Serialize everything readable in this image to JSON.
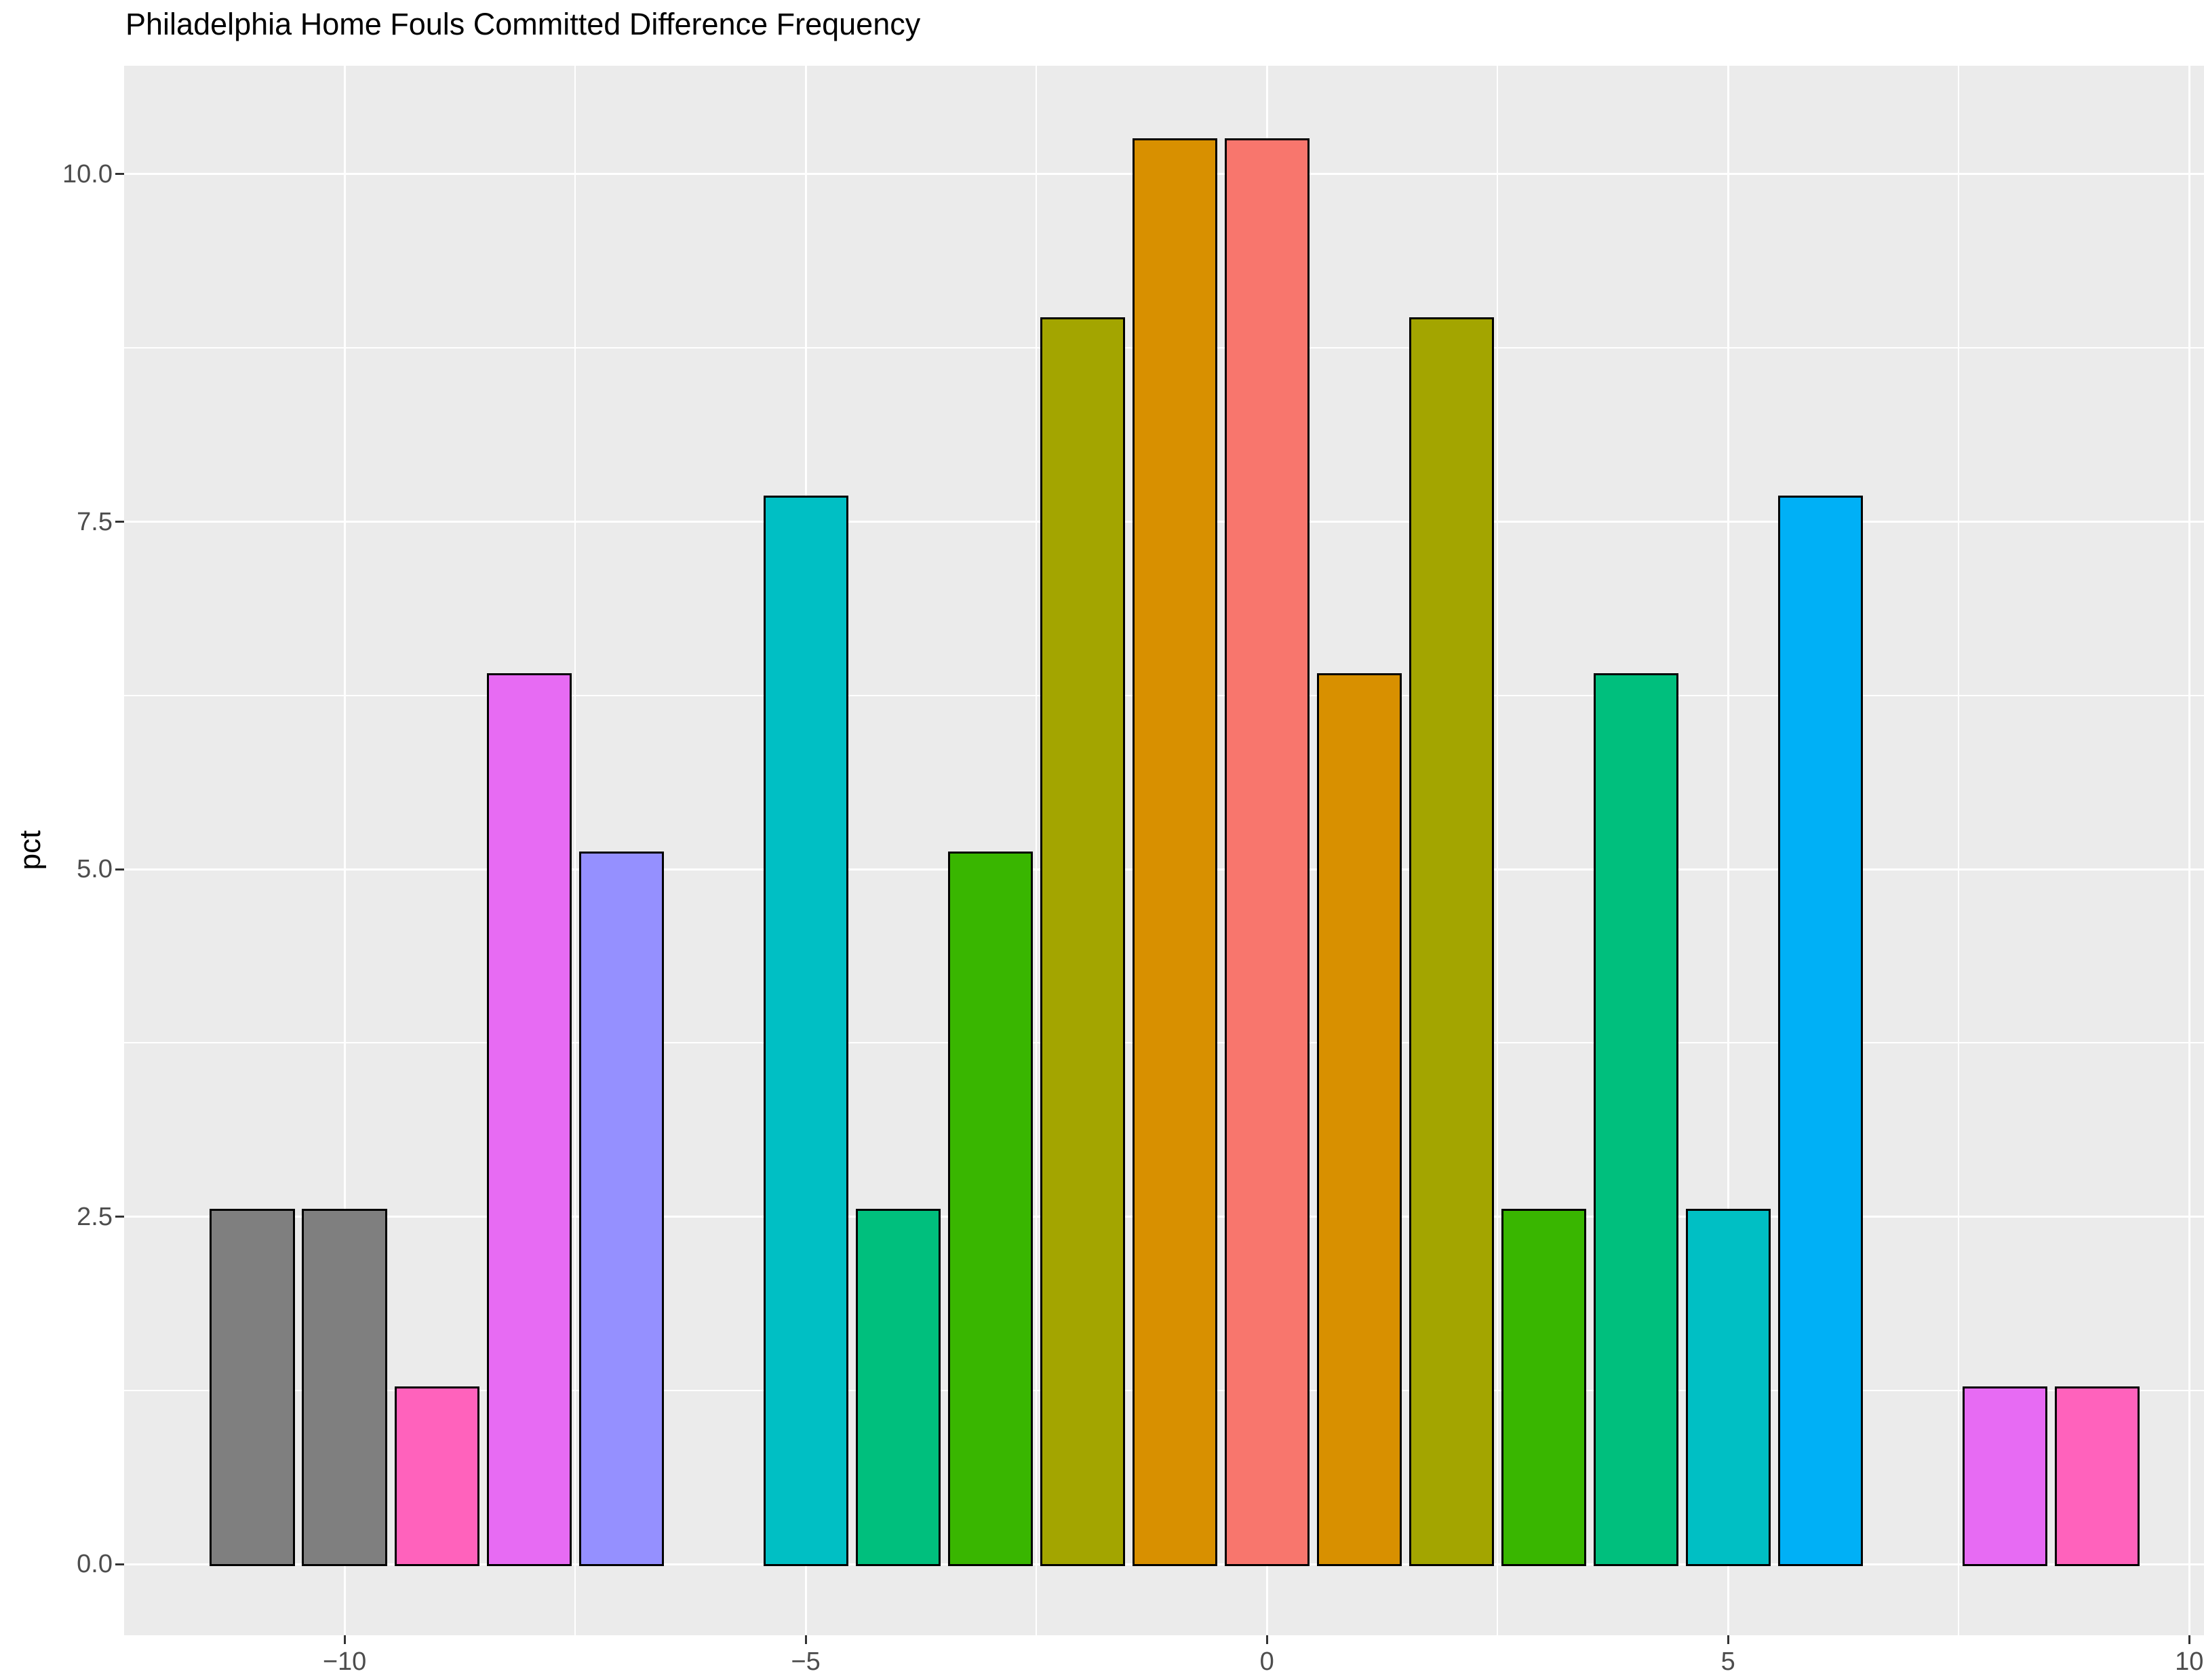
{
  "figure": {
    "title": "Philadelphia Home Fouls Committed Difference Frequency",
    "y_axis_title": "pct"
  },
  "chart_data": {
    "type": "bar",
    "title": "Philadelphia Home Fouls Committed Difference Frequency",
    "xlabel": "",
    "ylabel": "pct",
    "legend_position": "none",
    "grid": "major-and-minor-white-on-grey-panel",
    "x": [
      -11,
      -10,
      -9,
      -8,
      -7,
      -5,
      -4,
      -3,
      -2,
      -1,
      0,
      1,
      2,
      3,
      4,
      5,
      6,
      8,
      9
    ],
    "values": [
      2.56,
      2.56,
      1.28,
      6.41,
      5.13,
      7.69,
      2.56,
      5.13,
      8.97,
      10.26,
      10.26,
      6.41,
      8.97,
      2.56,
      6.41,
      2.56,
      7.69,
      1.28,
      1.28
    ],
    "bar_fills": [
      "#7F7F7F",
      "#7F7F7F",
      "#FF62BC",
      "#E76BF3",
      "#9590FF",
      "#00BFC4",
      "#00BF7D",
      "#39B600",
      "#A3A500",
      "#D89000",
      "#F8766D",
      "#D89000",
      "#A3A500",
      "#39B600",
      "#00BF7D",
      "#00BFC4",
      "#00B0F6",
      "#E76BF3",
      "#FF62BC"
    ],
    "bar_width": 0.92,
    "bar_stroke": "#000000",
    "xlim": [
      -12.39,
      10.16
    ],
    "ylim": [
      -0.51,
      10.78
    ],
    "x_major_ticks": [
      {
        "value": -10,
        "label": "−10"
      },
      {
        "value": -5,
        "label": "−5"
      },
      {
        "value": 0,
        "label": "0"
      },
      {
        "value": 5,
        "label": "5"
      },
      {
        "value": 10,
        "label": "10"
      }
    ],
    "y_major_ticks": [
      {
        "value": 0,
        "label": "0.0"
      },
      {
        "value": 2.5,
        "label": "2.5"
      },
      {
        "value": 5,
        "label": "5.0"
      },
      {
        "value": 7.5,
        "label": "7.5"
      },
      {
        "value": 10,
        "label": "10.0"
      }
    ],
    "x_minor": [
      -7.5,
      -2.5,
      2.5,
      7.5
    ],
    "y_minor": [
      1.25,
      3.75,
      6.25,
      8.75
    ],
    "colors": {
      "panel_background": "#EBEBEB",
      "grid": "#FFFFFF",
      "tick_mark": "#333333",
      "tick_label": "#4D4D4D",
      "title": "#000000"
    }
  }
}
